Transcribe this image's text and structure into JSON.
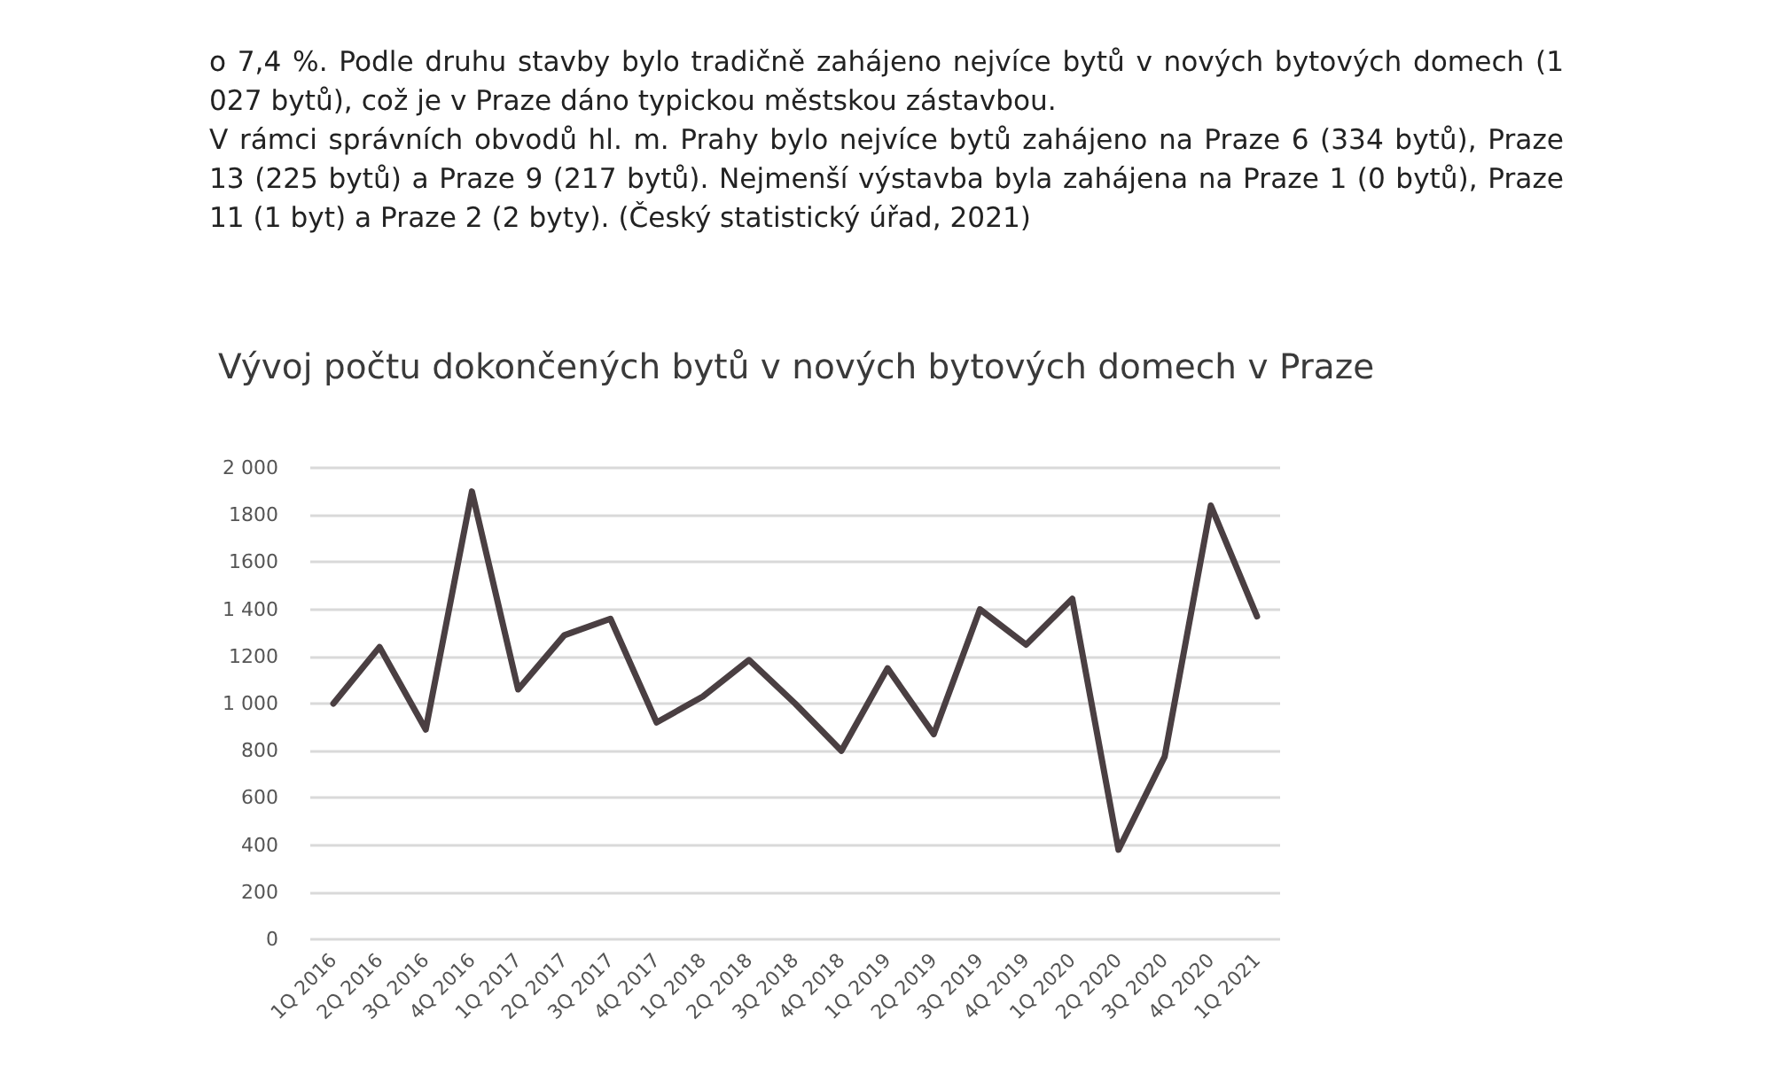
{
  "chart_data": {
    "type": "line",
    "title": "Vývoj počtu dokončených bytů v nových bytových domech v Praze",
    "annotations": [
      "o 7,4 %. Podle druhu stavby bylo tradičně zahájeno nejvíce bytů v nových bytových domech (1 027 bytů), což je v Praze dáno typickou městskou zástavbou.",
      "V rámci správních obvodů hl. m. Prahy bylo nejvíce bytů zahájeno na Praze 6 (334 bytů), Praze 13 (225 bytů) a Praze 9 (217 bytů). Nejmenší výstavba byla zahájena na Praze 1 (0 bytů), Praze 11 (1 byt) a Praze 2 (2 byty). (Český statistický úřad, 2021)"
    ],
    "categories": [
      "1Q 2016",
      "2Q 2016",
      "3Q 2016",
      "4Q 2016",
      "1Q 2017",
      "2Q 2017",
      "3Q 2017",
      "4Q 2017",
      "1Q 2018",
      "2Q 2018",
      "3Q 2018",
      "4Q 2018",
      "1Q 2019",
      "2Q 2019",
      "3Q 2019",
      "4Q 2019",
      "1Q 2020",
      "2Q 2020",
      "3Q 2020",
      "4Q 2020",
      "1Q 2021"
    ],
    "series": [
      {
        "color": "#4a3f42",
        "values": [
          1000,
          1240,
          890,
          1900,
          1060,
          1290,
          1360,
          920,
          1030,
          1185,
          1000,
          800,
          1150,
          870,
          1400,
          1250,
          1445,
          380,
          775,
          1840,
          1370
        ]
      }
    ],
    "ylim": [
      0,
      2000
    ],
    "yticks": [
      0,
      200,
      400,
      600,
      800,
      {
        "value": 1000,
        "label": "1 000"
      },
      1200,
      {
        "value": 1400,
        "label": "1 400"
      },
      1600,
      1800,
      {
        "value": 2000,
        "label": "2 000"
      }
    ],
    "grid": "y",
    "marker": "none",
    "line_style": "solid"
  }
}
